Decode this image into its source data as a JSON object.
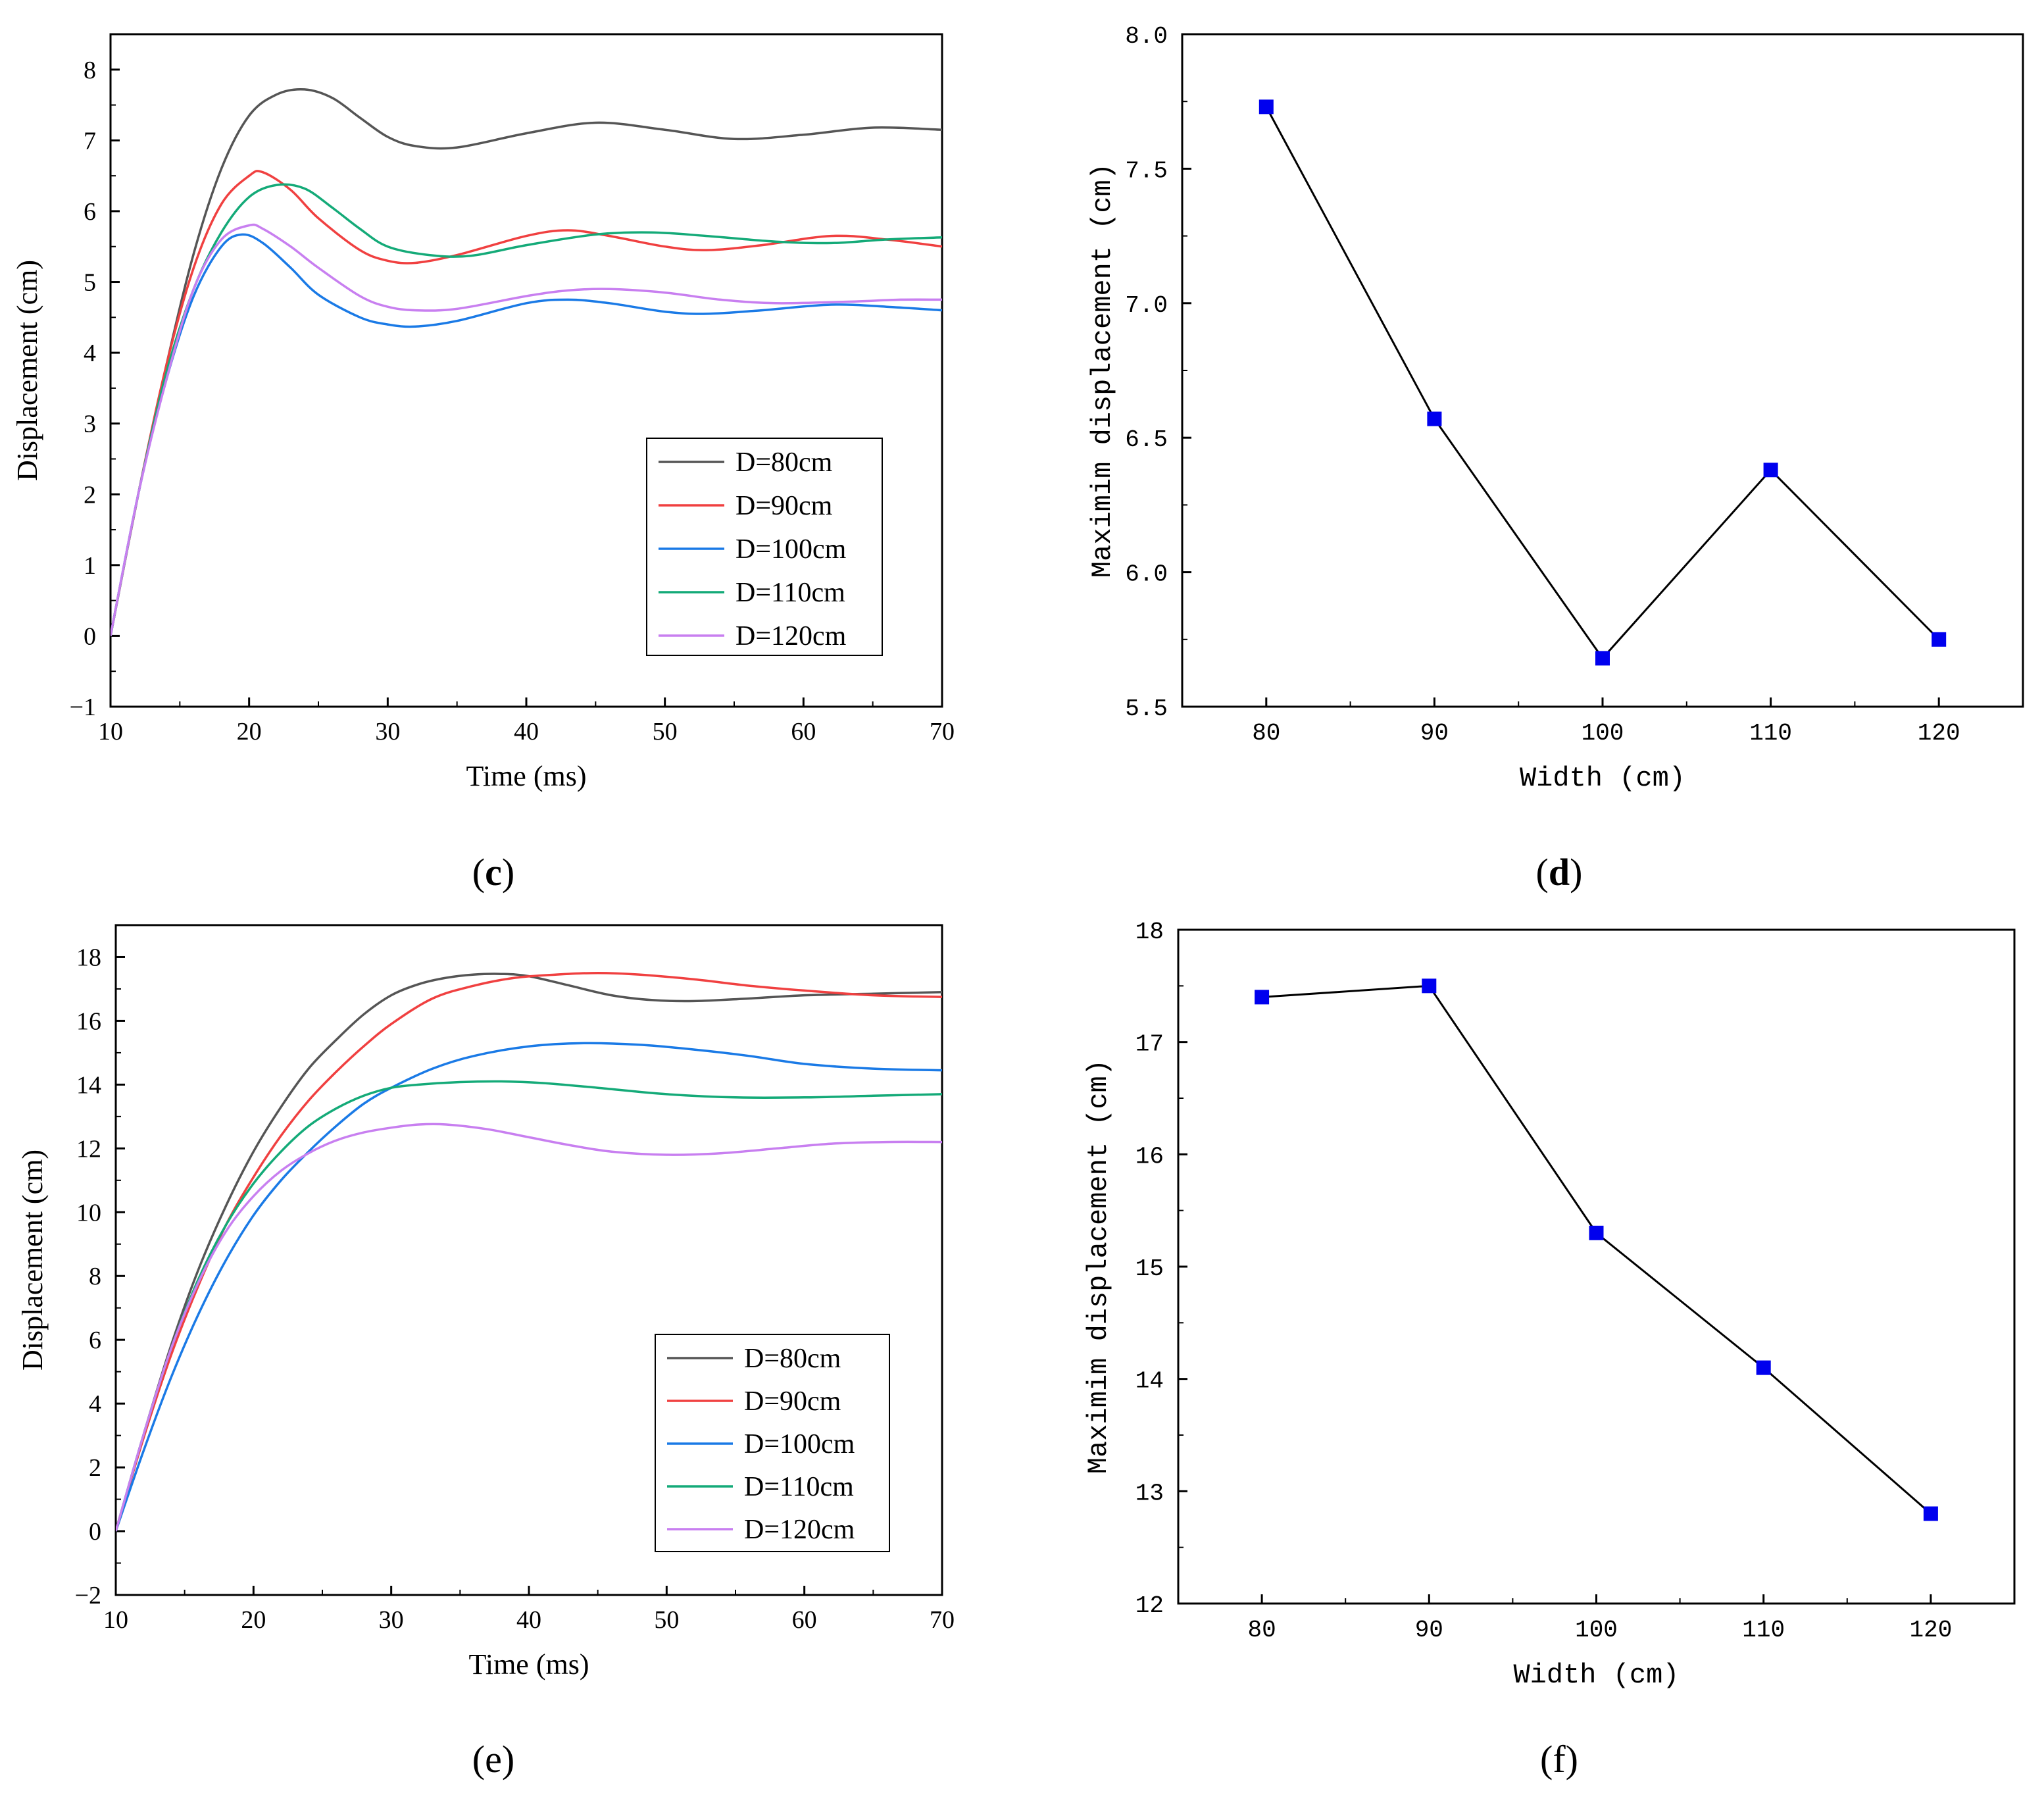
{
  "colors": {
    "d80": "#555555",
    "d90": "#f04040",
    "d100": "#1a7ae6",
    "d110": "#14aa78",
    "d120": "#c87ff0",
    "marker": "#0000ee",
    "axis": "#000000"
  },
  "chart_data": [
    {
      "id": "c",
      "caption": "c",
      "type": "line",
      "title": "",
      "xlabel": "Time (ms)",
      "ylabel": "Displacement (cm)",
      "xlim": [
        10,
        70
      ],
      "ylim": [
        -1,
        8.5
      ],
      "xticks": [
        10,
        20,
        30,
        40,
        50,
        60,
        70
      ],
      "xtick_labels": [
        "10",
        "20",
        "30",
        "40",
        "50",
        "60",
        "70"
      ],
      "yticks": [
        -1,
        0,
        1,
        2,
        3,
        4,
        5,
        6,
        7,
        8
      ],
      "ytick_labels": [
        "−1",
        "0",
        "1",
        "2",
        "3",
        "4",
        "5",
        "6",
        "7",
        "8"
      ],
      "grid": false,
      "legend_position": "lower-right",
      "series": [
        {
          "name": "D=80cm",
          "color_key": "d80",
          "x": [
            10,
            12,
            14,
            16,
            18,
            20,
            22,
            24,
            26,
            28,
            30,
            32,
            35,
            40,
            45,
            50,
            55,
            60,
            65,
            70
          ],
          "y": [
            0,
            2.0,
            3.8,
            5.4,
            6.6,
            7.35,
            7.65,
            7.72,
            7.6,
            7.32,
            7.05,
            6.92,
            6.9,
            7.1,
            7.25,
            7.15,
            7.02,
            7.08,
            7.18,
            7.15
          ]
        },
        {
          "name": "D=90cm",
          "color_key": "d90",
          "x": [
            10,
            12,
            14,
            16,
            18,
            20,
            21,
            23,
            25,
            28,
            30,
            32,
            35,
            40,
            43,
            46,
            50,
            53,
            57,
            62,
            66,
            70
          ],
          "y": [
            0,
            2.0,
            3.8,
            5.2,
            6.1,
            6.5,
            6.55,
            6.3,
            5.9,
            5.45,
            5.3,
            5.27,
            5.38,
            5.65,
            5.73,
            5.65,
            5.5,
            5.45,
            5.52,
            5.65,
            5.6,
            5.5
          ]
        },
        {
          "name": "D=100cm",
          "color_key": "d100",
          "x": [
            10,
            12,
            14,
            16,
            18,
            19.5,
            21,
            23,
            25,
            28,
            30,
            32,
            35,
            40,
            43,
            46,
            50,
            53,
            57,
            62,
            66,
            70
          ],
          "y": [
            0,
            2.0,
            3.6,
            4.8,
            5.5,
            5.67,
            5.55,
            5.2,
            4.82,
            4.5,
            4.4,
            4.37,
            4.45,
            4.7,
            4.75,
            4.7,
            4.58,
            4.55,
            4.6,
            4.68,
            4.65,
            4.6
          ]
        },
        {
          "name": "D=110cm",
          "color_key": "d110",
          "x": [
            10,
            12,
            14,
            16,
            18,
            20,
            22,
            24,
            26,
            28,
            30,
            33,
            36,
            40,
            45,
            49,
            53,
            58,
            62,
            66,
            70
          ],
          "y": [
            0,
            2.0,
            3.7,
            4.9,
            5.7,
            6.2,
            6.37,
            6.32,
            6.05,
            5.75,
            5.5,
            5.38,
            5.37,
            5.52,
            5.67,
            5.7,
            5.65,
            5.57,
            5.55,
            5.6,
            5.63
          ]
        },
        {
          "name": "D=120cm",
          "color_key": "d120",
          "x": [
            10,
            12,
            14,
            16,
            18,
            20,
            21,
            23,
            25,
            28,
            30,
            32,
            35,
            40,
            43,
            46,
            50,
            54,
            58,
            63,
            67,
            70
          ],
          "y": [
            0,
            2.0,
            3.6,
            4.9,
            5.6,
            5.8,
            5.75,
            5.5,
            5.2,
            4.8,
            4.65,
            4.6,
            4.62,
            4.8,
            4.88,
            4.9,
            4.85,
            4.75,
            4.7,
            4.72,
            4.75,
            4.75
          ]
        }
      ]
    },
    {
      "id": "d",
      "caption": "d",
      "type": "line",
      "title": "",
      "xlabel": "Width (cm)",
      "ylabel": "Maximim displacement (cm)",
      "xlim": [
        75,
        125
      ],
      "ylim": [
        5.5,
        8.0
      ],
      "xticks": [
        80,
        90,
        100,
        110,
        120
      ],
      "xtick_labels": [
        "80",
        "90",
        "100",
        "110",
        "120"
      ],
      "yticks": [
        5.5,
        6.0,
        6.5,
        7.0,
        7.5,
        8.0
      ],
      "ytick_labels": [
        "5.5",
        "6.0",
        "6.5",
        "7.0",
        "7.5",
        "8.0"
      ],
      "grid": false,
      "markers": "square",
      "series": [
        {
          "name": "Maximum displacement",
          "x": [
            80,
            90,
            100,
            110,
            120
          ],
          "y": [
            7.73,
            6.57,
            5.68,
            6.38,
            5.75
          ]
        }
      ]
    },
    {
      "id": "e",
      "caption": "e",
      "type": "line",
      "title": "",
      "xlabel": "Time (ms)",
      "ylabel": "Displacement (cm)",
      "xlim": [
        10,
        70
      ],
      "ylim": [
        -2,
        19
      ],
      "xticks": [
        10,
        20,
        30,
        40,
        50,
        60,
        70
      ],
      "xtick_labels": [
        "10",
        "20",
        "30",
        "40",
        "50",
        "60",
        "70"
      ],
      "yticks": [
        -2,
        0,
        2,
        4,
        6,
        8,
        10,
        12,
        14,
        16,
        18
      ],
      "ytick_labels": [
        "−2",
        "0",
        "2",
        "4",
        "6",
        "8",
        "10",
        "12",
        "14",
        "16",
        "18"
      ],
      "grid": false,
      "legend_position": "lower-right",
      "series": [
        {
          "name": "D=80cm",
          "color_key": "d80",
          "x": [
            10,
            12,
            14,
            16,
            18,
            20,
            22,
            24,
            26,
            28,
            30,
            32,
            34,
            36,
            38,
            40,
            43,
            46,
            49,
            52,
            56,
            60,
            65,
            70
          ],
          "y": [
            0,
            3.0,
            5.8,
            8.2,
            10.2,
            11.9,
            13.3,
            14.5,
            15.4,
            16.2,
            16.8,
            17.15,
            17.35,
            17.45,
            17.47,
            17.4,
            17.1,
            16.8,
            16.65,
            16.62,
            16.7,
            16.8,
            16.85,
            16.9
          ]
        },
        {
          "name": "D=90cm",
          "color_key": "d90",
          "x": [
            10,
            12,
            14,
            16,
            18,
            20,
            22,
            24,
            26,
            28,
            30,
            33,
            36,
            39,
            42,
            45,
            48,
            52,
            56,
            60,
            65,
            70
          ],
          "y": [
            0,
            2.9,
            5.5,
            7.7,
            9.6,
            11.1,
            12.4,
            13.5,
            14.4,
            15.2,
            15.9,
            16.7,
            17.1,
            17.35,
            17.45,
            17.5,
            17.45,
            17.3,
            17.1,
            16.95,
            16.8,
            16.75
          ]
        },
        {
          "name": "D=100cm",
          "color_key": "d100",
          "x": [
            10,
            12,
            14,
            16,
            18,
            20,
            22,
            24,
            26,
            28,
            30,
            33,
            36,
            40,
            44,
            48,
            52,
            56,
            60,
            65,
            70
          ],
          "y": [
            0,
            2.5,
            4.8,
            6.8,
            8.5,
            9.9,
            11.0,
            11.9,
            12.7,
            13.4,
            13.9,
            14.5,
            14.9,
            15.2,
            15.3,
            15.25,
            15.1,
            14.9,
            14.65,
            14.5,
            14.45
          ]
        },
        {
          "name": "D=110cm",
          "color_key": "d110",
          "x": [
            10,
            12,
            14,
            16,
            18,
            20,
            22,
            24,
            26,
            28,
            30,
            32,
            35,
            38,
            41,
            45,
            50,
            55,
            60,
            65,
            70
          ],
          "y": [
            0,
            3.0,
            5.7,
            7.9,
            9.6,
            10.9,
            11.9,
            12.7,
            13.25,
            13.65,
            13.9,
            14.0,
            14.08,
            14.1,
            14.05,
            13.9,
            13.7,
            13.6,
            13.6,
            13.65,
            13.7
          ]
        },
        {
          "name": "D=120cm",
          "color_key": "d120",
          "x": [
            10,
            12,
            14,
            16,
            18,
            20,
            22,
            24,
            26,
            28,
            30,
            32,
            34,
            37,
            40,
            43,
            46,
            50,
            54,
            58,
            62,
            66,
            70
          ],
          "y": [
            0,
            3.0,
            5.7,
            7.8,
            9.4,
            10.5,
            11.3,
            11.85,
            12.25,
            12.5,
            12.65,
            12.75,
            12.75,
            12.6,
            12.35,
            12.1,
            11.9,
            11.8,
            11.85,
            12.0,
            12.15,
            12.2,
            12.2
          ]
        }
      ]
    },
    {
      "id": "f",
      "caption": "f",
      "type": "line",
      "title": "",
      "xlabel": "Width (cm)",
      "ylabel": "Maximim displacement (cm)",
      "xlim": [
        75,
        125
      ],
      "ylim": [
        12,
        18
      ],
      "xticks": [
        80,
        90,
        100,
        110,
        120
      ],
      "xtick_labels": [
        "80",
        "90",
        "100",
        "110",
        "120"
      ],
      "yticks": [
        12,
        13,
        14,
        15,
        16,
        17,
        18
      ],
      "ytick_labels": [
        "12",
        "13",
        "14",
        "15",
        "16",
        "17",
        "18"
      ],
      "grid": false,
      "markers": "square",
      "series": [
        {
          "name": "Maximum displacement",
          "x": [
            80,
            90,
            100,
            110,
            120
          ],
          "y": [
            17.4,
            17.5,
            15.3,
            14.1,
            12.8
          ]
        }
      ]
    }
  ]
}
